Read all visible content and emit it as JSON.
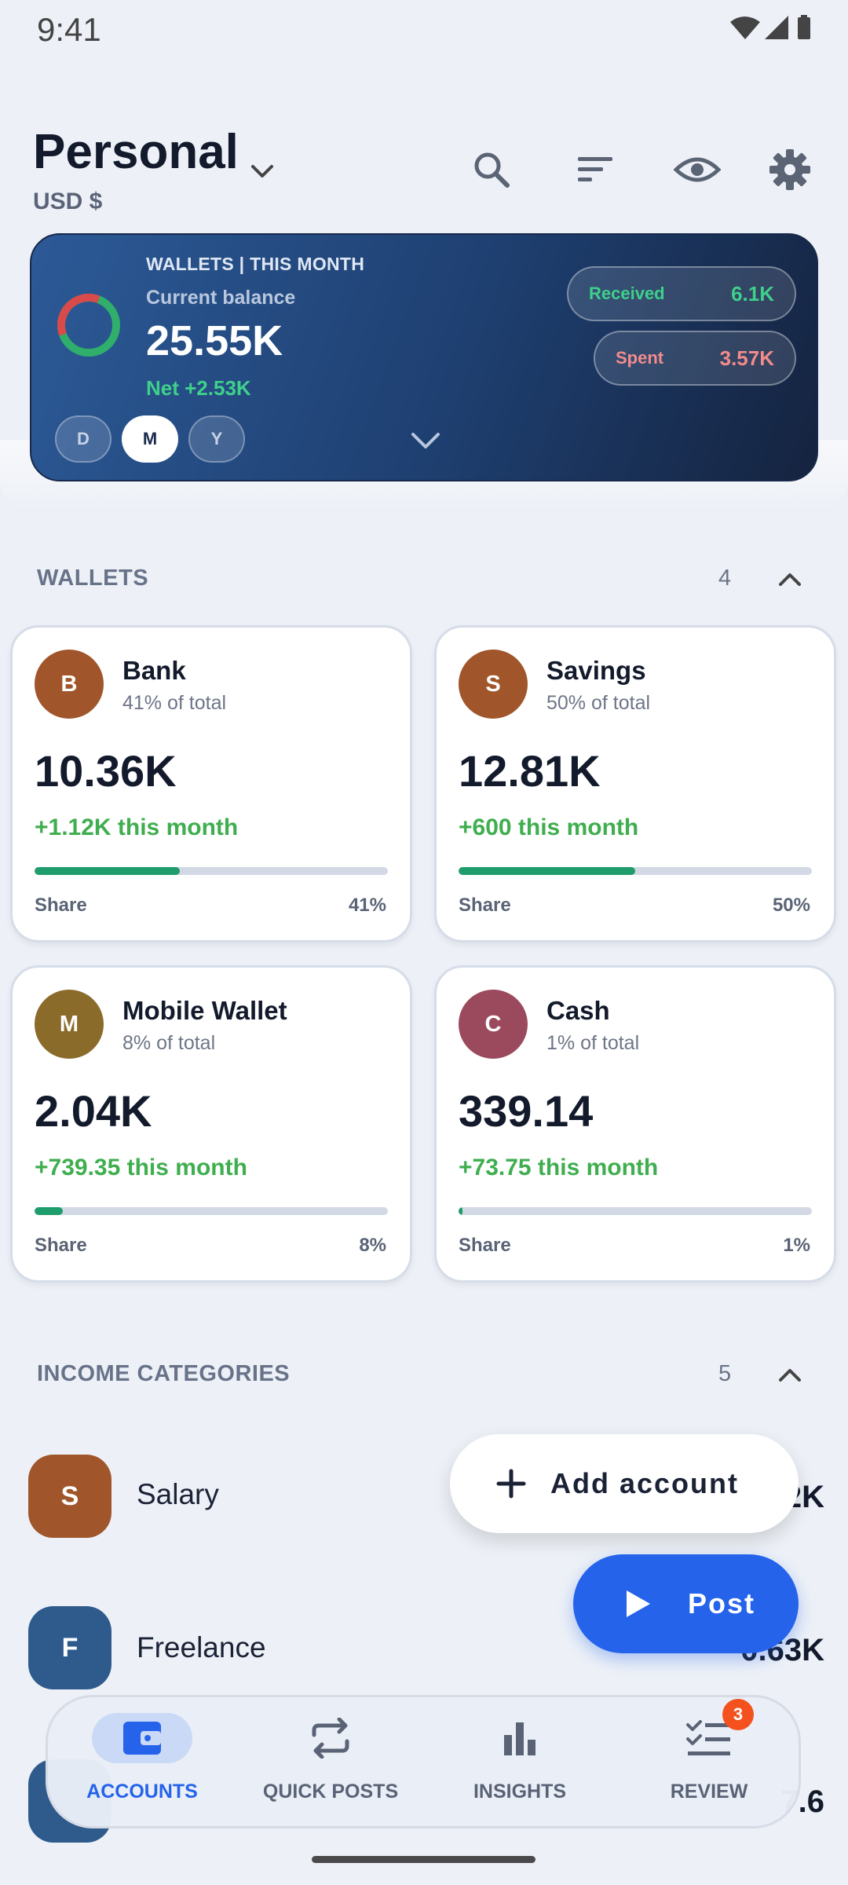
{
  "status_bar": {
    "time": "9:41"
  },
  "header": {
    "title": "Personal",
    "currency": "USD $"
  },
  "summary": {
    "label": "WALLETS | THIS MONTH",
    "balance_label": "Current balance",
    "balance": "25.55K",
    "net": "Net +2.53K",
    "received_label": "Received",
    "received_value": "6.1K",
    "spent_label": "Spent",
    "spent_value": "3.57K",
    "periods": [
      "D",
      "M",
      "Y"
    ],
    "active_period": "M",
    "colors": {
      "received": "#3ed08a",
      "spent": "#f28b8b"
    }
  },
  "wallets": {
    "title": "WALLETS",
    "count": "4",
    "share_label": "Share",
    "items": [
      {
        "initial": "B",
        "name": "Bank",
        "pct_text": "41% of total",
        "amount": "10.36K",
        "change": "+1.12K this month",
        "share": "41%",
        "share_fraction": 0.41,
        "color": "#a0562a"
      },
      {
        "initial": "S",
        "name": "Savings",
        "pct_text": "50% of total",
        "amount": "12.81K",
        "change": "+600 this month",
        "share": "50%",
        "share_fraction": 0.5,
        "color": "#a0562a"
      },
      {
        "initial": "M",
        "name": "Mobile Wallet",
        "pct_text": "8% of total",
        "amount": "2.04K",
        "change": "+739.35 this month",
        "share": "8%",
        "share_fraction": 0.08,
        "color": "#8b6b2a"
      },
      {
        "initial": "C",
        "name": "Cash",
        "pct_text": "1% of total",
        "amount": "339.14",
        "change": "+73.75 this month",
        "share": "1%",
        "share_fraction": 0.01,
        "color": "#9b4a5e"
      }
    ]
  },
  "income": {
    "title": "INCOME CATEGORIES",
    "count": "5",
    "items": [
      {
        "initial": "S",
        "name": "Salary",
        "amount": "2K",
        "color": "#a0562a"
      },
      {
        "initial": "F",
        "name": "Freelance",
        "amount": "0.63K",
        "color": "#2e5b8c"
      },
      {
        "initial": "",
        "name": "",
        "amount": "7.6",
        "color": "#2e5b8c"
      }
    ]
  },
  "fab": {
    "add_account": "Add account",
    "post": "Post"
  },
  "nav": {
    "accounts": "ACCOUNTS",
    "quick_posts": "QUICK POSTS",
    "insights": "INSIGHTS",
    "review": "REVIEW",
    "review_badge": "3"
  },
  "icons": {
    "header": [
      "search-icon",
      "sort-icon",
      "eye-icon",
      "gear-icon"
    ],
    "nav": [
      "wallet-icon",
      "repeat-icon",
      "bar-chart-icon",
      "checklist-icon"
    ]
  },
  "accent": "#2563eb"
}
